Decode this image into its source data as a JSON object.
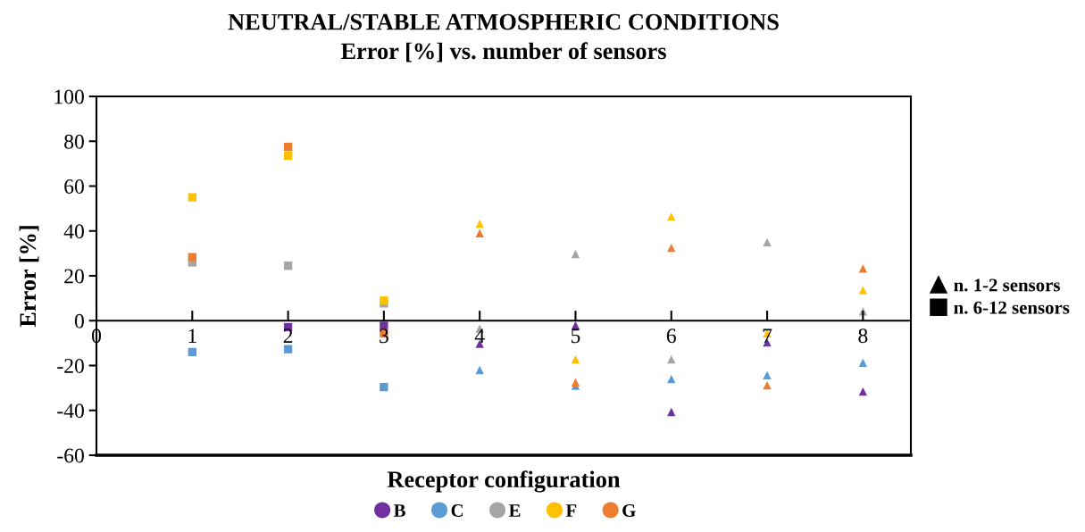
{
  "chart_data": {
    "type": "scatter",
    "title": "NEUTRAL/STABLE ATMOSPHERIC CONDITIONS",
    "subtitle": "Error [%] vs. number of sensors",
    "xlabel": "Receptor configuration",
    "ylabel": "Error [%]",
    "xlim": [
      0,
      8.5
    ],
    "xticks": [
      0,
      1,
      2,
      3,
      4,
      5,
      6,
      7,
      8
    ],
    "ylim": [
      -60,
      100
    ],
    "yticks": [
      -60,
      -40,
      -20,
      0,
      20,
      40,
      60,
      80,
      100
    ],
    "grid": false,
    "legend": "bottom",
    "annotations": [
      "n. 1-2 sensors",
      "n. 6-12 sensors"
    ],
    "series": [
      {
        "name": "B",
        "color": "#7030a0",
        "marker": "triangle",
        "x": [
          4,
          5,
          6,
          7,
          8
        ],
        "values": [
          -10.3,
          -2.1,
          -40.7,
          -9.7,
          -31.6
        ]
      },
      {
        "color": "#7030a0",
        "marker": "square",
        "x": [
          2,
          3
        ],
        "values": [
          -2.9,
          -2.3
        ]
      },
      {
        "name": "C",
        "color": "#5b9bd5",
        "marker": "triangle",
        "x": [
          4,
          5,
          6,
          7,
          8
        ],
        "values": [
          -22,
          -29,
          -26,
          -24.3,
          -18.7
        ]
      },
      {
        "color": "#5b9bd5",
        "marker": "square",
        "x": [
          1,
          2,
          3
        ],
        "values": [
          -14,
          -12.7,
          -29.6
        ]
      },
      {
        "name": "E",
        "color": "#a5a5a5",
        "marker": "triangle",
        "x": [
          4,
          5,
          6,
          7,
          8
        ],
        "values": [
          -3.5,
          29.7,
          -17.3,
          35,
          4.1
        ]
      },
      {
        "color": "#a5a5a5",
        "marker": "square",
        "x": [
          1,
          2,
          3
        ],
        "values": [
          26,
          24.5,
          7.7
        ]
      },
      {
        "name": "F",
        "color": "#ffc000",
        "marker": "triangle",
        "x": [
          4,
          5,
          6,
          7,
          8
        ],
        "values": [
          43.2,
          -17.3,
          46.4,
          -5.6,
          13.6
        ]
      },
      {
        "color": "#ffc000",
        "marker": "square",
        "x": [
          1,
          2,
          3
        ],
        "values": [
          55,
          73.5,
          9
        ]
      },
      {
        "name": "G",
        "color": "#ed7d31",
        "marker": "triangle",
        "x": [
          4,
          5,
          6,
          7,
          8
        ],
        "values": [
          39,
          -27.5,
          32.5,
          -28.8,
          23.2
        ]
      },
      {
        "color": "#ed7d31",
        "marker": "square",
        "x": [
          1,
          2,
          3
        ],
        "values": [
          28.3,
          77.5,
          -5.7
        ]
      }
    ]
  }
}
